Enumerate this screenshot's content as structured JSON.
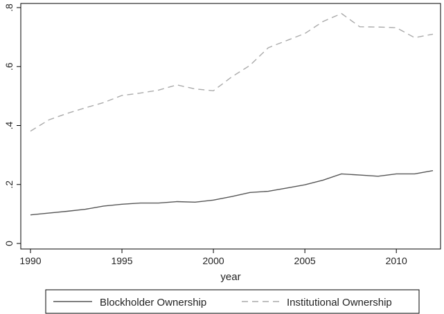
{
  "chart_data": {
    "type": "line",
    "title": "",
    "xlabel": "year",
    "ylabel": "",
    "xlim": [
      1990,
      2012
    ],
    "ylim": [
      0,
      0.8
    ],
    "xticks": [
      1990,
      1995,
      2000,
      2005,
      2010
    ],
    "xtick_labels": [
      "1990",
      "1995",
      "2000",
      "2005",
      "2010"
    ],
    "yticks": [
      0,
      0.2,
      0.4,
      0.6,
      0.8
    ],
    "ytick_labels": [
      "0",
      ".2",
      ".4",
      ".6",
      ".8"
    ],
    "grid": false,
    "legend_position": "bottom",
    "x": [
      1990,
      1991,
      1992,
      1993,
      1994,
      1995,
      1996,
      1997,
      1998,
      1999,
      2000,
      2001,
      2002,
      2003,
      2004,
      2005,
      2006,
      2007,
      2008,
      2009,
      2010,
      2011,
      2012
    ],
    "series": [
      {
        "name": "Blockholder Ownership",
        "style": "solid",
        "color": "#555555",
        "values": [
          0.097,
          0.103,
          0.109,
          0.116,
          0.127,
          0.133,
          0.137,
          0.137,
          0.142,
          0.14,
          0.147,
          0.159,
          0.173,
          0.177,
          0.188,
          0.199,
          0.215,
          0.236,
          0.232,
          0.228,
          0.236,
          0.236,
          0.247
        ]
      },
      {
        "name": "Institutional Ownership",
        "style": "dashed",
        "color": "#aaaaaa",
        "values": [
          0.381,
          0.419,
          0.441,
          0.46,
          0.478,
          0.502,
          0.51,
          0.52,
          0.538,
          0.524,
          0.518,
          0.565,
          0.604,
          0.664,
          0.688,
          0.712,
          0.753,
          0.78,
          0.735,
          0.734,
          0.732,
          0.698,
          0.71
        ]
      }
    ]
  }
}
